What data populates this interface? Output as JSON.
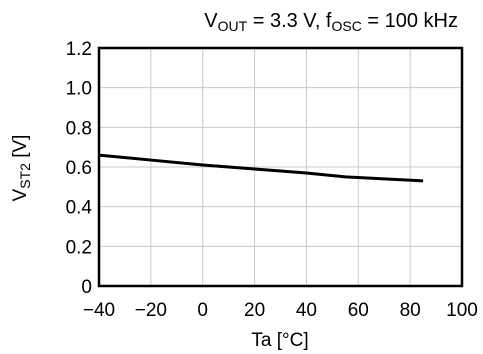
{
  "chart_data": {
    "type": "line",
    "title": {
      "v_main": "V",
      "v_sub": "OUT",
      "v_rest": " = 3.3 V, f",
      "f_sub": "OSC",
      "f_rest": " = 100 kHz"
    },
    "xlabel": "Ta [°C]",
    "ylabel": {
      "main": "V",
      "sub": "ST2",
      "rest": " [V]"
    },
    "xlim": [
      -40,
      100
    ],
    "ylim": [
      0,
      1.2
    ],
    "x_ticks": [
      -40,
      -20,
      0,
      20,
      40,
      60,
      80,
      100
    ],
    "x_tick_labels": [
      "−40",
      "−20",
      "0",
      "20",
      "40",
      "60",
      "80",
      "100"
    ],
    "y_ticks": [
      0,
      0.2,
      0.4,
      0.6,
      0.8,
      1.0,
      1.2
    ],
    "y_tick_labels": [
      "0",
      "0.2",
      "0.4",
      "0.6",
      "0.8",
      "1.0",
      "1.2"
    ],
    "grid": true,
    "series": [
      {
        "x": [
          -40,
          -20,
          0,
          20,
          40,
          55,
          70,
          85
        ],
        "y": [
          0.66,
          0.635,
          0.61,
          0.59,
          0.57,
          0.55,
          0.54,
          0.53
        ]
      }
    ]
  }
}
